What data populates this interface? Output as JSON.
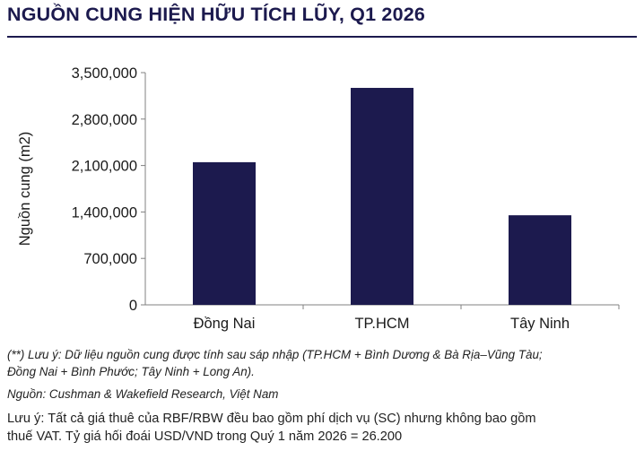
{
  "title": "NGUỒN CUNG HIỆN HỮU TÍCH LŨY, Q1 2026",
  "colors": {
    "title": "#1c1a4e",
    "bar": "#1c1a4e",
    "axis": "#808080"
  },
  "chart_data": {
    "type": "bar",
    "title": "",
    "xlabel": "",
    "ylabel": "Nguồn cung (m2)",
    "categories": [
      "Đồng Nai",
      "TP.HCM",
      "Tây Ninh"
    ],
    "values": [
      2150000,
      3270000,
      1350000
    ],
    "ylim": [
      0,
      3500000
    ],
    "yticks": [
      0,
      700000,
      1400000,
      2100000,
      2800000,
      3500000
    ],
    "ytick_labels": [
      "0",
      "700,000",
      "1,400,000",
      "2,100,000",
      "2,800,000",
      "3,500,000"
    ],
    "grid": false,
    "legend": "none"
  },
  "notes": {
    "merger_line1": "(**) Lưu ý: Dữ liệu nguồn cung được tính sau sáp nhập (TP.HCM + Bình Dương & Bà Rịa–Vũng Tàu;",
    "merger_line2": "Đồng Nai + Bình Phước; Tây Ninh + Long An).",
    "source": "Nguồn: Cushman & Wakefield Research, Việt Nam",
    "rent_line1": "Lưu ý: Tất cả giá thuê của RBF/RBW đều bao gồm phí dịch vụ (SC) nhưng không bao gồm",
    "rent_line2": "thuế VAT. Tỷ giá hối đoái USD/VND trong Quý 1 năm 2026 = 26.200"
  }
}
